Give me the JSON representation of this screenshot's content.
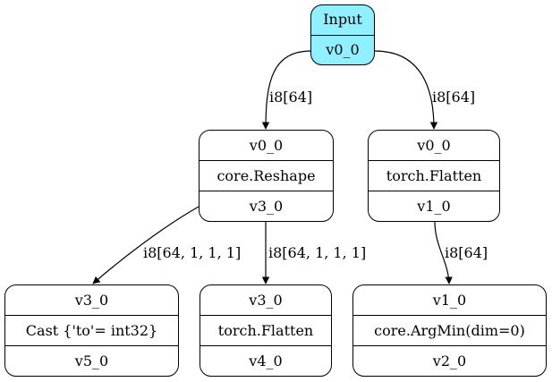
{
  "nodes": {
    "input": {
      "rows": [
        "Input",
        "v0_0"
      ]
    },
    "reshape": {
      "rows": [
        "v0_0",
        "core.Reshape",
        "v3_0"
      ]
    },
    "flatten_top": {
      "rows": [
        "v0_0",
        "torch.Flatten",
        "v1_0"
      ]
    },
    "cast": {
      "rows": [
        "v3_0",
        "Cast {'to'= int32}",
        "v5_0"
      ]
    },
    "flatten_bot": {
      "rows": [
        "v3_0",
        "torch.Flatten",
        "v4_0"
      ]
    },
    "argmin": {
      "rows": [
        "v1_0",
        "core.ArgMin(dim=0)",
        "v2_0"
      ]
    }
  },
  "edges": {
    "input_to_reshape": "i8[64]",
    "input_to_flatten": "i8[64]",
    "reshape_to_cast": "i8[64, 1, 1, 1]",
    "reshape_to_flatten": "i8[64, 1, 1, 1]",
    "flatten_to_argmin": "i8[64]"
  },
  "colors": {
    "input_fill": "#90f0ff",
    "stroke": "#000000"
  }
}
